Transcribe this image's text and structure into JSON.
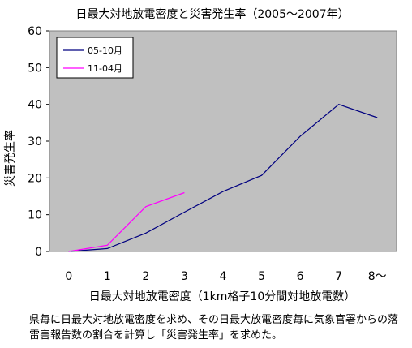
{
  "chart_data": {
    "type": "line",
    "title": "日最大対地放電密度と災害発生率（2005～2007年）",
    "xlabel": "日最大対地放電密度（1km格子10分間対地放電数）",
    "ylabel": "災害発生率",
    "x_tick_labels": [
      "0",
      "1",
      "2",
      "3",
      "4",
      "5",
      "6",
      "7",
      "8～"
    ],
    "y_ticks": [
      0,
      10,
      20,
      30,
      40,
      50,
      60
    ],
    "xlim": [
      -0.5,
      8.5
    ],
    "ylim": [
      0,
      60
    ],
    "grid": false,
    "legend_position": "top-left",
    "plot_background": "#c0c0c0",
    "series": [
      {
        "name": "05-10月",
        "color": "#000080",
        "points": [
          [
            0,
            0
          ],
          [
            1,
            0.8
          ],
          [
            2,
            5
          ],
          [
            3,
            10.7
          ],
          [
            4,
            16.3
          ],
          [
            5,
            20.7
          ],
          [
            6,
            31.3
          ],
          [
            7,
            40
          ],
          [
            8,
            36.4
          ]
        ]
      },
      {
        "name": "11-04月",
        "color": "#ff00ff",
        "points": [
          [
            0,
            0
          ],
          [
            1,
            1.7
          ],
          [
            2,
            12.2
          ],
          [
            3,
            16
          ]
        ]
      }
    ]
  },
  "caption": "県毎に日最大対地放電密度を求め、その日最大放電密度毎に気象官署からの落雷害報告数の割合を計算し「災害発生率」を求めた。"
}
